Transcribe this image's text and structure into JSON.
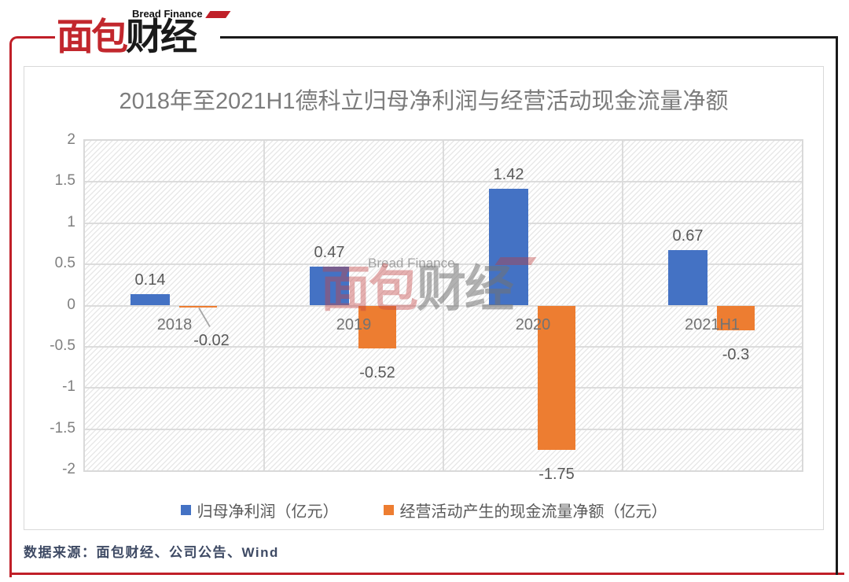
{
  "brand": {
    "logo_sub": "Bread Finance",
    "logo_red": "面包",
    "logo_black": "财经",
    "source_note": "数据来源：面包财经、公司公告、Wind"
  },
  "watermark": {
    "sub": "Bread Finance",
    "red": "面包",
    "gray": "财经"
  },
  "colors": {
    "frame_red": "#C01F28",
    "frame_black": "#1A1A1A",
    "series_blue": "#4472C4",
    "series_orange": "#ED7D31",
    "gridline": "#DCDCDC",
    "title_gray": "#7C7C7C",
    "label_gray": "#595959",
    "source_navy": "#3E4A64"
  },
  "chart_data": {
    "type": "bar",
    "title": "2018年至2021H1德科立归母净利润与经营活动现金流量净额",
    "categories": [
      "2018",
      "2019",
      "2020",
      "2021H1"
    ],
    "series": [
      {
        "name": "归母净利润（亿元）",
        "color": "#4472C4",
        "values": [
          0.14,
          0.47,
          1.42,
          0.67
        ]
      },
      {
        "name": "经营活动产生的现金流量净额（亿元）",
        "color": "#ED7D31",
        "values": [
          -0.02,
          -0.52,
          -1.75,
          -0.3
        ]
      }
    ],
    "data_labels": [
      [
        "0.14",
        "0.47",
        "1.42",
        "0.67"
      ],
      [
        "-0.02",
        "-0.52",
        "-1.75",
        "-0.3"
      ]
    ],
    "label_callouts": [
      {
        "series": 1,
        "category": 0
      }
    ],
    "xlabel": "",
    "ylabel": "",
    "ylim": [
      -2,
      2
    ],
    "ytick_step": 0.5,
    "yticks": [
      "2",
      "1.5",
      "1",
      "0.5",
      "0",
      "-0.5",
      "-1",
      "-1.5",
      "-2"
    ],
    "grid": true,
    "legend_position": "bottom"
  }
}
